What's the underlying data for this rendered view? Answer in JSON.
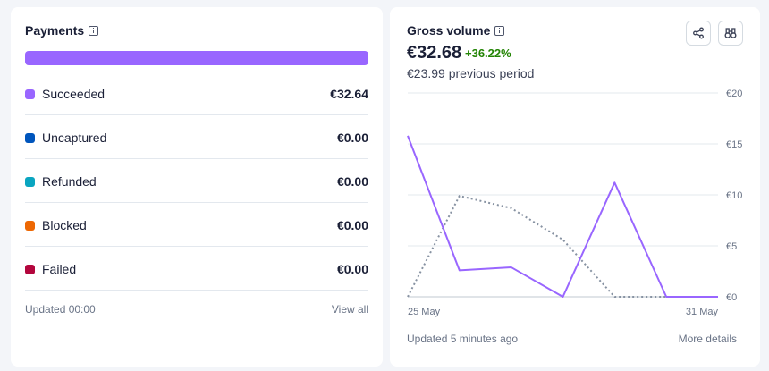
{
  "payments": {
    "title": "Payments",
    "breakdown_color": "#9966ff",
    "rows": [
      {
        "label": "Succeeded",
        "value": "€32.64",
        "color": "#9966ff"
      },
      {
        "label": "Uncaptured",
        "value": "€0.00",
        "color": "#0055bc"
      },
      {
        "label": "Refunded",
        "value": "€0.00",
        "color": "#0aa5c0"
      },
      {
        "label": "Blocked",
        "value": "€0.00",
        "color": "#ed6804"
      },
      {
        "label": "Failed",
        "value": "€0.00",
        "color": "#b3063d"
      }
    ],
    "updated": "Updated 00:00",
    "view_all": "View all"
  },
  "gross": {
    "title": "Gross volume",
    "amount": "€32.68",
    "change": "+36.22%",
    "previous": "€23.99 previous period",
    "updated": "Updated 5 minutes ago",
    "more_details": "More details",
    "share_icon": "share-icon",
    "explore_icon": "binoculars-icon"
  },
  "chart_data": {
    "type": "line",
    "x_start_label": "25 May",
    "x_end_label": "31 May",
    "x_points": 7,
    "y_ticks": [
      "€20",
      "€15",
      "€10",
      "€5",
      "€0"
    ],
    "ylim": [
      0,
      20
    ],
    "series": [
      {
        "values": [
          15.8,
          2.6,
          2.9,
          0,
          11.2,
          0,
          0
        ],
        "color": "#9966ff",
        "style": "solid"
      },
      {
        "values": [
          0,
          9.9,
          8.7,
          5.6,
          0,
          0,
          0
        ],
        "color": "#8792a2",
        "style": "dotted"
      }
    ],
    "grid": true
  }
}
